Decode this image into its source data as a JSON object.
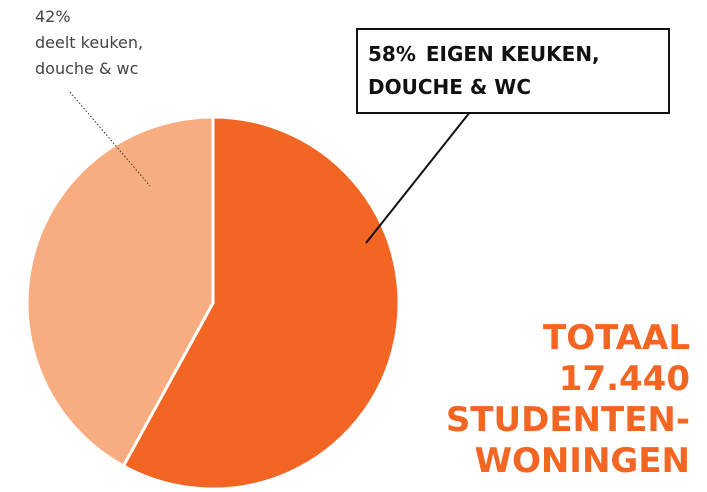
{
  "chart_data": {
    "type": "pie",
    "categories": [
      "EIGEN KEUKEN, DOUCHE & WC",
      "deelt keuken, douche & wc"
    ],
    "values": [
      58,
      42
    ],
    "value_labels": [
      "58%",
      "42%"
    ],
    "colors": [
      "#f26522",
      "#f8ad80"
    ],
    "annotation": [
      "TOTAAL",
      "17.440",
      "STUDENTEN-",
      "WONINGEN"
    ]
  }
}
